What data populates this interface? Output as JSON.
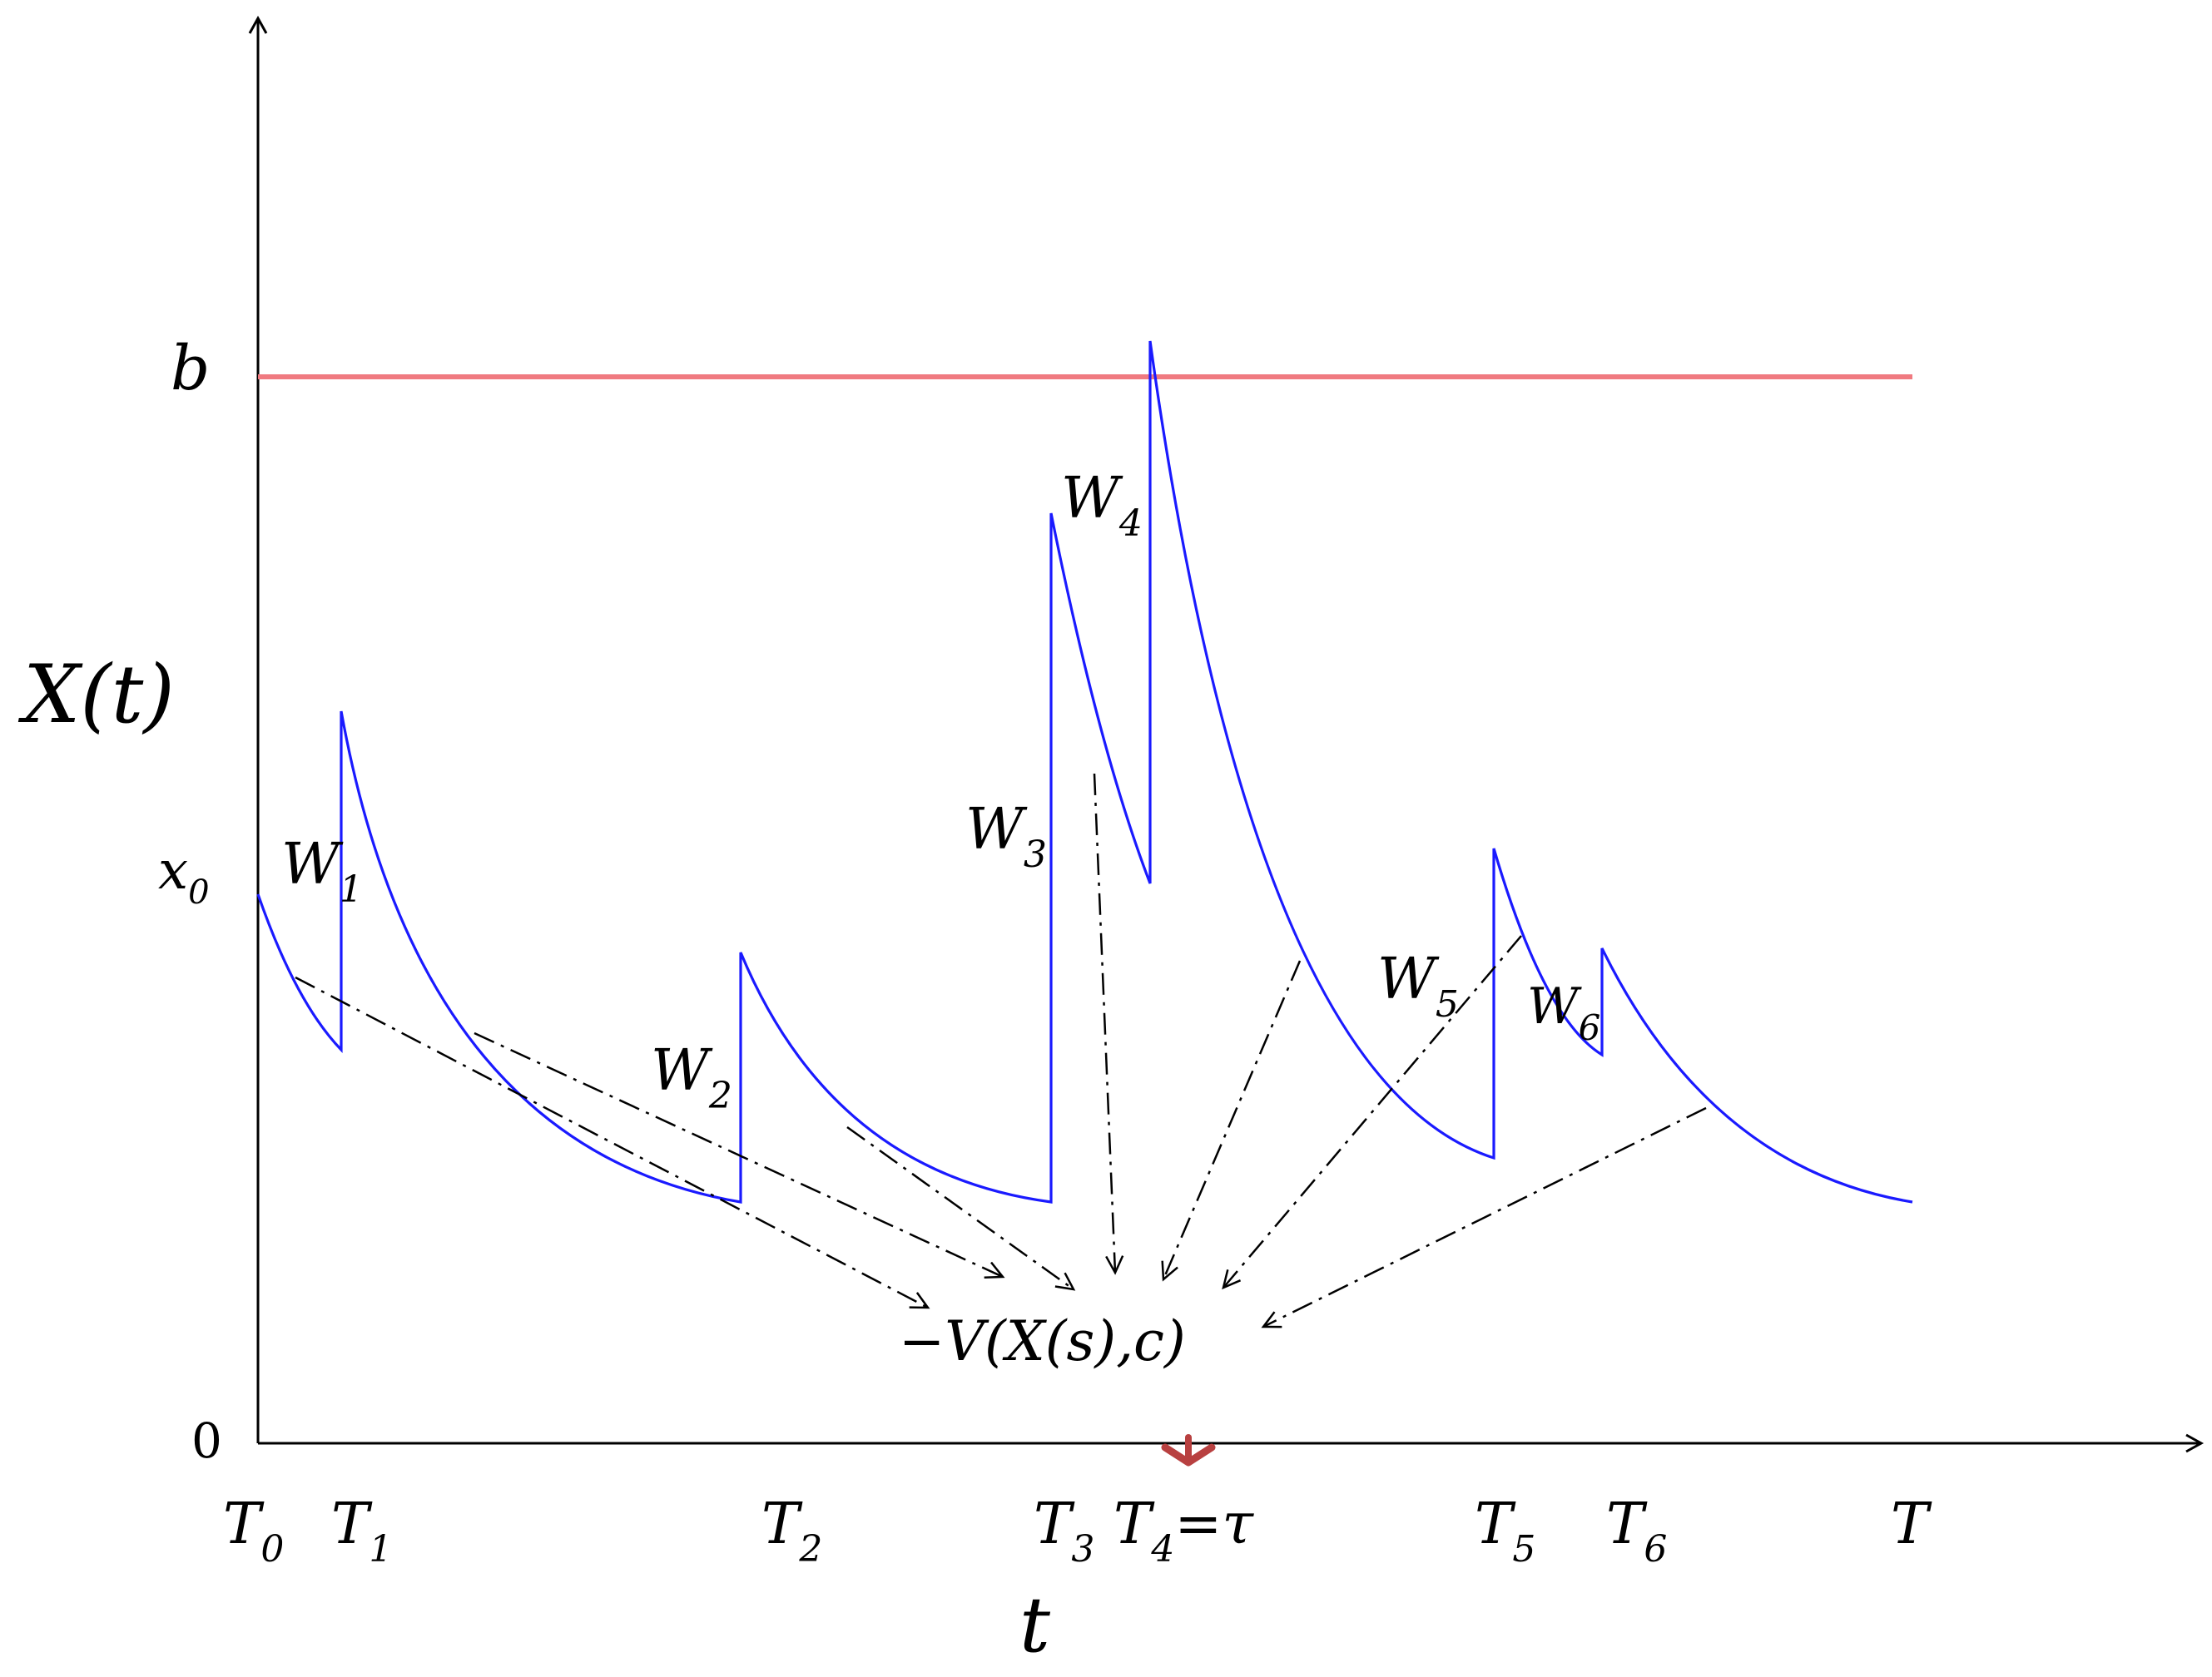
{
  "axes": {
    "y_label": "X(t)",
    "x_label": "t",
    "origin_label": "0",
    "threshold_label": "b",
    "start_label": "x",
    "start_sub": "0"
  },
  "time_labels": [
    {
      "main": "T",
      "sub": "0"
    },
    {
      "main": "T",
      "sub": "1"
    },
    {
      "main": "T",
      "sub": "2"
    },
    {
      "main": "T",
      "sub": "3"
    },
    {
      "main": "T",
      "sub": "4",
      "suffix": "=τ"
    },
    {
      "main": "T",
      "sub": "5"
    },
    {
      "main": "T",
      "sub": "6"
    },
    {
      "main": "T",
      "sub": ""
    }
  ],
  "jump_labels": [
    {
      "main": "W",
      "sub": "1"
    },
    {
      "main": "W",
      "sub": "2"
    },
    {
      "main": "W",
      "sub": "3"
    },
    {
      "main": "W",
      "sub": "4"
    },
    {
      "main": "W",
      "sub": "5"
    },
    {
      "main": "W",
      "sub": "6"
    }
  ],
  "decay_label": "−V(X(s),c)",
  "colors": {
    "path": "#1a1aff",
    "threshold": "#f07a80",
    "axis": "#000000",
    "marker": "#b84040",
    "arrows": "#000000"
  }
}
